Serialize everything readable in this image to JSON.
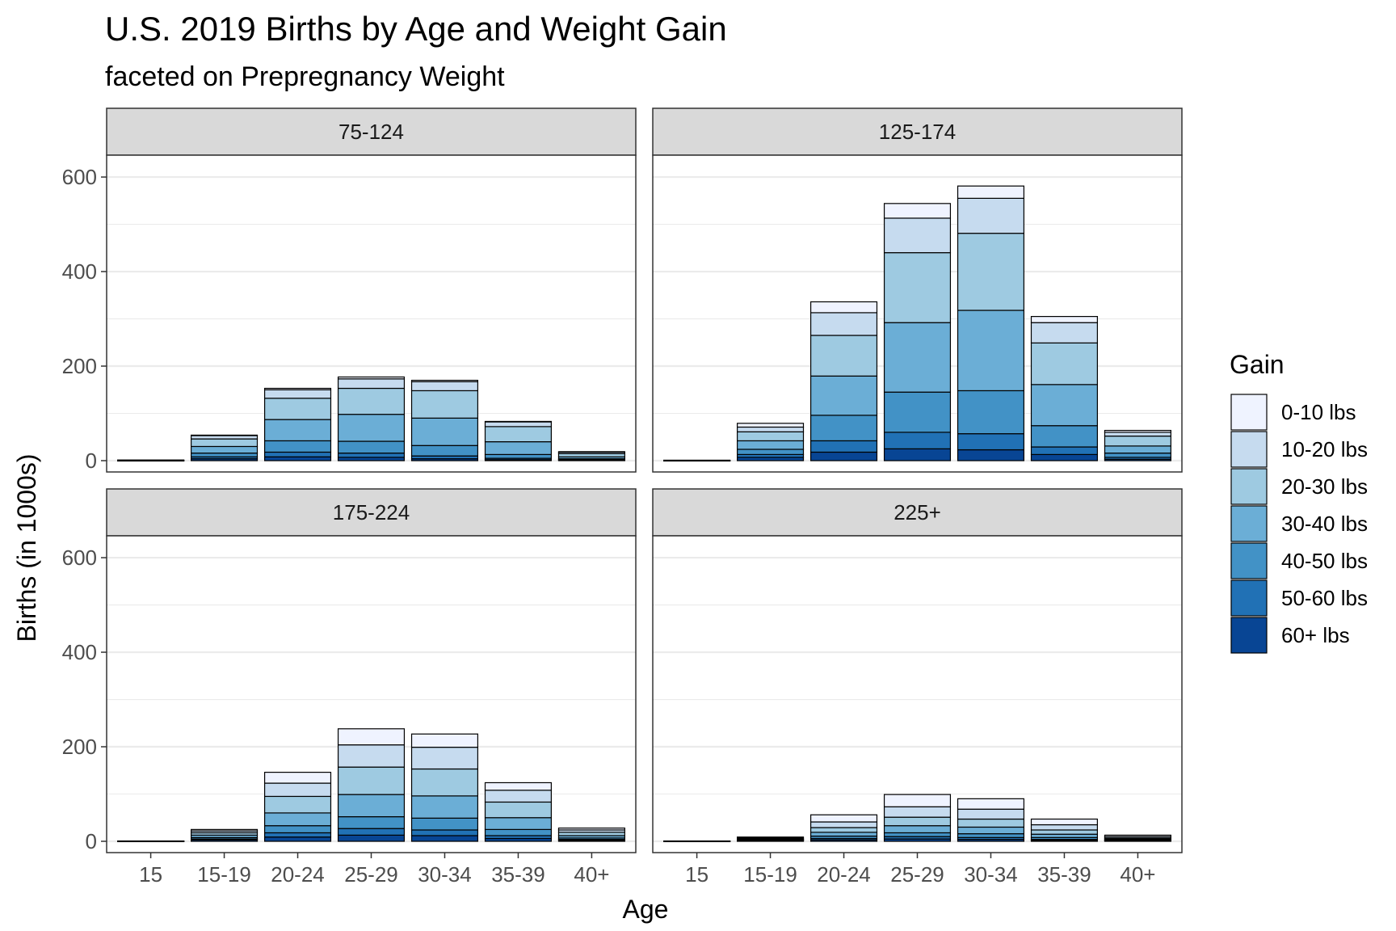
{
  "chart_data": {
    "type": "bar",
    "stacked": true,
    "title": "U.S. 2019 Births by Age and Weight Gain",
    "subtitle": "faceted on Prepregnancy Weight",
    "xlabel": "Age",
    "ylabel": "Births (in 1000s)",
    "ylim": [
      0,
      600
    ],
    "yticks": [
      0,
      200,
      400,
      600
    ],
    "grid": true,
    "legend_title": "Gain",
    "legend_position": "right",
    "categories": [
      "15",
      "15-19",
      "20-24",
      "25-29",
      "30-34",
      "35-39",
      "40+"
    ],
    "series_names": [
      "0-10 lbs",
      "10-20 lbs",
      "20-30 lbs",
      "30-40 lbs",
      "40-50 lbs",
      "50-60 lbs",
      "60+ lbs"
    ],
    "colors": [
      "#eff3ff",
      "#c6dbef",
      "#9ecae1",
      "#6baed6",
      "#4292c6",
      "#2171b5",
      "#084594"
    ],
    "facets": [
      {
        "label": "75-124",
        "series": [
          {
            "name": "0-10 lbs",
            "values": [
              0.1,
              1,
              3,
              4,
              3,
              1,
              1
            ]
          },
          {
            "name": "10-20 lbs",
            "values": [
              0.1,
              7,
              18,
              20,
              19,
              10,
              3
            ]
          },
          {
            "name": "20-30 lbs",
            "values": [
              0.3,
              16,
              45,
              55,
              58,
              32,
              7
            ]
          },
          {
            "name": "30-40 lbs",
            "values": [
              0.3,
              14,
              45,
              57,
              58,
              27,
              4
            ]
          },
          {
            "name": "40-50 lbs",
            "values": [
              0.2,
              8,
              24,
              25,
              22,
              8,
              2
            ]
          },
          {
            "name": "50-60 lbs",
            "values": [
              0.1,
              4,
              10,
              9,
              6,
              3,
              1
            ]
          },
          {
            "name": "60+ lbs",
            "values": [
              0.1,
              4,
              8,
              7,
              4,
              2,
              1
            ]
          }
        ]
      },
      {
        "label": "125-174",
        "series": [
          {
            "name": "0-10 lbs",
            "values": [
              0.1,
              8,
              23,
              31,
              26,
              13,
              4
            ]
          },
          {
            "name": "10-20 lbs",
            "values": [
              0.1,
              10,
              48,
              73,
              74,
              43,
              8
            ]
          },
          {
            "name": "20-30 lbs",
            "values": [
              0.2,
              19,
              86,
              148,
              163,
              88,
              21
            ]
          },
          {
            "name": "30-40 lbs",
            "values": [
              0.2,
              18,
              83,
              147,
              170,
              87,
              15
            ]
          },
          {
            "name": "40-50 lbs",
            "values": [
              0.1,
              11,
              54,
              85,
              91,
              45,
              9
            ]
          },
          {
            "name": "50-60 lbs",
            "values": [
              0.1,
              6,
              24,
              35,
              34,
              16,
              4
            ]
          },
          {
            "name": "60+ lbs",
            "values": [
              0.1,
              7,
              18,
              25,
              23,
              13,
              3
            ]
          }
        ]
      },
      {
        "label": "175-224",
        "series": [
          {
            "name": "0-10 lbs",
            "values": [
              0.1,
              3,
              23,
              34,
              28,
              16,
              4
            ]
          },
          {
            "name": "10-20 lbs",
            "values": [
              0.1,
              4,
              28,
              47,
              46,
              25,
              5
            ]
          },
          {
            "name": "20-30 lbs",
            "values": [
              0.1,
              5,
              35,
              58,
              57,
              33,
              7
            ]
          },
          {
            "name": "30-40 lbs",
            "values": [
              0.1,
              5,
              27,
              47,
              47,
              25,
              5
            ]
          },
          {
            "name": "40-50 lbs",
            "values": [
              0.1,
              3,
              15,
              25,
              25,
              13,
              3
            ]
          },
          {
            "name": "50-60 lbs",
            "values": [
              0.1,
              2,
              9,
              14,
              12,
              6,
              2
            ]
          },
          {
            "name": "60+ lbs",
            "values": [
              0.1,
              3,
              9,
              13,
              12,
              6,
              2
            ]
          }
        ]
      },
      {
        "label": "225+",
        "series": [
          {
            "name": "0-10 lbs",
            "values": [
              0.1,
              2,
              15,
              26,
              22,
              12,
              3
            ]
          },
          {
            "name": "10-20 lbs",
            "values": [
              0.1,
              2,
              12,
              22,
              21,
              11,
              3
            ]
          },
          {
            "name": "20-30 lbs",
            "values": [
              0.1,
              1,
              10,
              18,
              17,
              9,
              2
            ]
          },
          {
            "name": "30-40 lbs",
            "values": [
              0.1,
              1,
              8,
              15,
              14,
              7,
              2
            ]
          },
          {
            "name": "40-50 lbs",
            "values": [
              0.1,
              1,
              5,
              8,
              8,
              4,
              1
            ]
          },
          {
            "name": "50-60 lbs",
            "values": [
              0.1,
              1,
              3,
              5,
              4,
              2,
              1
            ]
          },
          {
            "name": "60+ lbs",
            "values": [
              0.1,
              1,
              3,
              5,
              4,
              2,
              1
            ]
          }
        ]
      }
    ]
  }
}
